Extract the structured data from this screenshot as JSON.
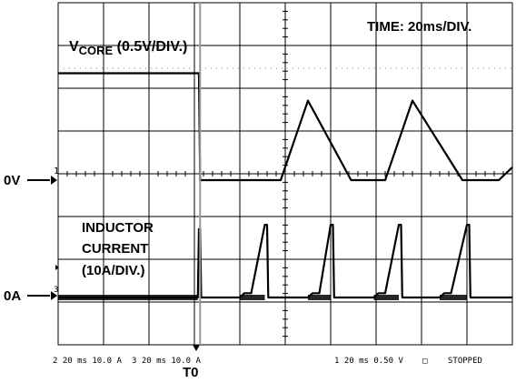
{
  "labels": {
    "vcore_prefix": "V",
    "vcore_sub": "CORE",
    "vcore_scale": " (0.5V/DIV.)",
    "time_scale": "TIME: 20ms/DIV.",
    "zero_volt": "0V",
    "zero_amp": "0A",
    "inductor_line1": "INDUCTOR",
    "inductor_line2": "CURRENT",
    "inductor_line3": "(10A/DIV.)",
    "t0": "T0",
    "ch1_marker": "1",
    "ch3_marker": "3"
  },
  "status": {
    "ch2": "2 20 ms 10.0 A",
    "ch3": "3 20 ms 10.0 A",
    "ch1": "1 20 ms 0.50 V",
    "box": "□",
    "state": "STOPPED"
  },
  "colors": {
    "trace": "#000000",
    "grid": "#000000",
    "background": "#ffffff"
  },
  "chart_data": {
    "type": "line",
    "xlabel": "",
    "ylabel": "",
    "x_units": "ms",
    "xlim": [
      0,
      200
    ],
    "grid": true,
    "series": [
      {
        "name": "VCORE",
        "scale": "0.5V/DIV.",
        "x": [
          0,
          62,
          62.5,
          98,
          110,
          129,
          129.5,
          144,
          156,
          178,
          178.5,
          194,
          200
        ],
        "y": [
          1.25,
          1.25,
          0,
          0,
          0.93,
          0,
          0,
          0,
          0.93,
          0,
          0,
          0,
          0.15
        ]
      },
      {
        "name": "INDUCTOR CURRENT",
        "scale": "10A/DIV.",
        "x": [
          0,
          61.5,
          62,
          62.5,
          63,
          80,
          82,
          85,
          91,
          92,
          92.5,
          93,
          110,
          112,
          115,
          120,
          121,
          121.5,
          122,
          139,
          141,
          144,
          150,
          151,
          151.5,
          152,
          168,
          170,
          173,
          180,
          181,
          181.5,
          182,
          200
        ],
        "y": [
          0,
          0,
          16,
          16,
          0,
          0,
          1,
          1,
          17,
          17,
          0,
          0,
          0,
          1,
          1,
          17,
          17,
          0,
          0,
          0,
          1,
          1,
          17,
          17,
          0,
          0,
          0,
          1,
          1,
          17,
          17,
          0,
          0,
          0
        ]
      }
    ]
  }
}
